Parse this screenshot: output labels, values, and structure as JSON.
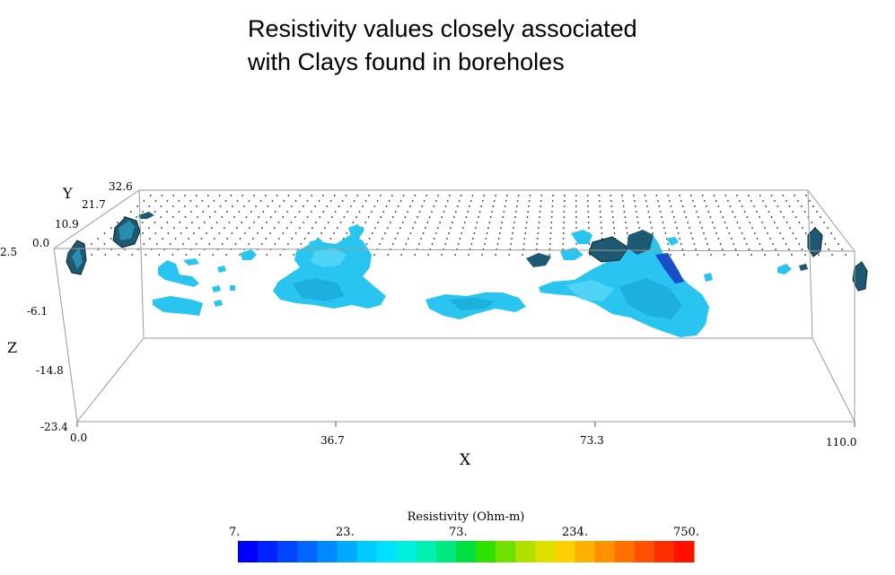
{
  "title": {
    "line1": "Resistivity values closely associated",
    "line2": "with Clays found in boreholes"
  },
  "chart_data": {
    "type": "scatter",
    "title": "Resistivity values closely associated with Clays found in boreholes",
    "xlabel": "X",
    "ylabel": "Y",
    "zlabel": "Z",
    "x_ticks": [
      "0.0",
      "36.7",
      "73.3",
      "110.0"
    ],
    "y_ticks": [
      "0.0",
      "10.9",
      "21.7",
      "32.6"
    ],
    "z_ticks": [
      "2.5",
      "-6.1",
      "-14.8",
      "-23.4"
    ],
    "xlim": [
      0.0,
      110.0
    ],
    "ylim": [
      0.0,
      32.6
    ],
    "zlim": [
      -23.4,
      2.5
    ],
    "grid": false,
    "colorbar": {
      "title": "Resistivity (Ohm-m)",
      "ticks": [
        "7.",
        "23.",
        "73.",
        "234.",
        "750."
      ],
      "scale": "log",
      "range": [
        7,
        750
      ],
      "colors": [
        "#0000ff",
        "#0022ff",
        "#0044ff",
        "#0066ff",
        "#0088ff",
        "#00aaff",
        "#00ccff",
        "#00e0ff",
        "#00f0e0",
        "#00f0b0",
        "#00e880",
        "#00e040",
        "#30e000",
        "#70e000",
        "#b0e000",
        "#e0e000",
        "#ffd000",
        "#ffb000",
        "#ff9000",
        "#ff7000",
        "#ff5000",
        "#ff3000",
        "#ff1000"
      ]
    },
    "series": [
      {
        "color": "#29c5f0",
        "edge_color": "#1a3a4a"
      }
    ]
  }
}
